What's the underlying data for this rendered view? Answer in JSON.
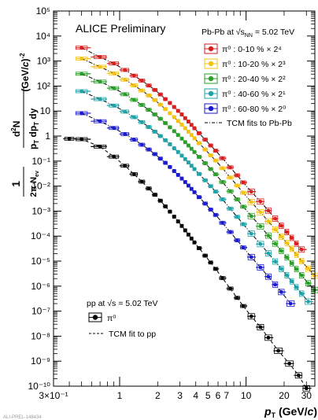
{
  "chart_data": {
    "type": "scatter",
    "annotation": "ALICE Preliminary",
    "footer": "ALI-PREL-148434",
    "xlabel": "p_T (GeV/c)",
    "ylabel": "(1 / 2π N_ev) d²N / (p_T dp_T dy) (GeV/c)^-2",
    "xlim": [
      0.3,
      35
    ],
    "ylim": [
      1e-10,
      100000.0
    ],
    "x_scale": "log",
    "y_scale": "log",
    "x_tick_labels": [
      {
        "v": 0.3,
        "t": "3×10⁻¹"
      },
      {
        "v": 1,
        "t": "1"
      },
      {
        "v": 2,
        "t": "2"
      },
      {
        "v": 3,
        "t": "3"
      },
      {
        "v": 4,
        "t": "4"
      },
      {
        "v": 5,
        "t": "5"
      },
      {
        "v": 6,
        "t": "6"
      },
      {
        "v": 7,
        "t": "7"
      },
      {
        "v": 10,
        "t": "10"
      },
      {
        "v": 20,
        "t": "20"
      },
      {
        "v": 30,
        "t": "30"
      }
    ],
    "y_tick_labels": [
      {
        "v": 100000.0,
        "t": "10⁵"
      },
      {
        "v": 10000.0,
        "t": "10⁴"
      },
      {
        "v": 1000.0,
        "t": "10³"
      },
      {
        "v": 100.0,
        "t": "10²"
      },
      {
        "v": 10,
        "t": "10"
      },
      {
        "v": 1,
        "t": "1"
      },
      {
        "v": 0.1,
        "t": "10⁻¹"
      },
      {
        "v": 0.01,
        "t": "10⁻²"
      },
      {
        "v": 0.001,
        "t": "10⁻³"
      },
      {
        "v": 0.0001,
        "t": "10⁻⁴"
      },
      {
        "v": 1e-05,
        "t": "10⁻⁵"
      },
      {
        "v": 1e-06,
        "t": "10⁻⁶"
      },
      {
        "v": 1e-07,
        "t": "10⁻⁷"
      },
      {
        "v": 1e-08,
        "t": "10⁻⁸"
      },
      {
        "v": 1e-09,
        "t": "10⁻⁹"
      },
      {
        "v": 1e-10,
        "t": "10⁻¹⁰"
      }
    ],
    "legend_pbpb": {
      "header": "Pb-Pb at √s_NN = 5.02 TeV",
      "fit_label": "TCM fits to Pb-Pb",
      "placement": "top-right"
    },
    "legend_pp": {
      "header": "pp at √s = 5.02 TeV",
      "entry_label": "π⁰",
      "fit_label": "TCM fit to pp",
      "placement": "bottom-left"
    },
    "series": [
      {
        "name": "π⁰ : 0-10 % × 2⁴",
        "color": "#d81e1e",
        "points": [
          [
            0.5,
            3400.0
          ],
          [
            0.7,
            1450.0
          ],
          [
            0.9,
            800
          ],
          [
            1.1,
            440
          ],
          [
            1.3,
            260
          ],
          [
            1.5,
            165
          ],
          [
            1.7,
            105
          ],
          [
            1.9,
            70
          ],
          [
            2.1,
            46
          ],
          [
            2.3,
            30
          ],
          [
            2.5,
            21
          ],
          [
            2.7,
            14.5
          ],
          [
            2.9,
            10.2
          ],
          [
            3.1,
            7.3
          ],
          [
            3.3,
            5.2
          ],
          [
            3.5,
            3.8
          ],
          [
            3.7,
            2.8
          ],
          [
            3.9,
            2.05
          ],
          [
            4.25,
            1.3
          ],
          [
            4.75,
            0.72
          ],
          [
            5.25,
            0.42
          ],
          [
            5.75,
            0.26
          ],
          [
            6.5,
            0.13
          ],
          [
            7.5,
            0.056
          ],
          [
            8.5,
            0.027
          ],
          [
            9.5,
            0.014
          ],
          [
            11,
            0.006
          ],
          [
            13,
            0.0024
          ],
          [
            15,
            0.00105
          ],
          [
            17,
            0.0005
          ],
          [
            19,
            0.00026
          ],
          [
            21,
            0.000145
          ],
          [
            23,
            8.5e-05
          ],
          [
            25,
            5e-05
          ],
          [
            27.5,
            2.9e-05
          ]
        ]
      },
      {
        "name": "π⁰ : 10-20 % × 2³",
        "color": "#f5c211",
        "points": [
          [
            0.5,
            1250.0
          ],
          [
            0.7,
            590
          ],
          [
            0.9,
            320
          ],
          [
            1.1,
            180
          ],
          [
            1.3,
            106
          ],
          [
            1.5,
            66
          ],
          [
            1.7,
            42
          ],
          [
            1.9,
            27.5
          ],
          [
            2.1,
            18
          ],
          [
            2.3,
            12
          ],
          [
            2.5,
            8.2
          ],
          [
            2.7,
            5.7
          ],
          [
            2.9,
            4.0
          ],
          [
            3.1,
            2.85
          ],
          [
            3.3,
            2.05
          ],
          [
            3.5,
            1.5
          ],
          [
            3.7,
            1.1
          ],
          [
            3.9,
            0.82
          ],
          [
            4.25,
            0.52
          ],
          [
            4.75,
            0.29
          ],
          [
            5.25,
            0.17
          ],
          [
            5.75,
            0.105
          ],
          [
            6.5,
            0.052
          ],
          [
            7.5,
            0.022
          ],
          [
            8.5,
            0.0105
          ],
          [
            9.5,
            0.0054
          ],
          [
            11,
            0.0023
          ],
          [
            13,
            0.0009
          ],
          [
            15,
            0.00039
          ],
          [
            17,
            0.000185
          ],
          [
            19,
            9.5e-05
          ],
          [
            21,
            5.3e-05
          ],
          [
            23,
            3.1e-05
          ],
          [
            25,
            1.8e-05
          ],
          [
            27.5,
            1e-05
          ],
          [
            31,
            5e-06
          ],
          [
            35,
            2.6e-06
          ]
        ]
      },
      {
        "name": "π⁰ : 20-40 % × 2²",
        "color": "#2aa02a",
        "points": [
          [
            0.5,
            310
          ],
          [
            0.7,
            150
          ],
          [
            0.9,
            82
          ],
          [
            1.1,
            47
          ],
          [
            1.3,
            28
          ],
          [
            1.5,
            17.5
          ],
          [
            1.7,
            11.2
          ],
          [
            1.9,
            7.3
          ],
          [
            2.1,
            4.9
          ],
          [
            2.3,
            3.3
          ],
          [
            2.5,
            2.25
          ],
          [
            2.7,
            1.57
          ],
          [
            2.9,
            1.1
          ],
          [
            3.1,
            0.79
          ],
          [
            3.3,
            0.57
          ],
          [
            3.5,
            0.42
          ],
          [
            3.7,
            0.31
          ],
          [
            3.9,
            0.23
          ],
          [
            4.25,
            0.147
          ],
          [
            4.75,
            0.082
          ],
          [
            5.25,
            0.048
          ],
          [
            5.75,
            0.0295
          ],
          [
            6.5,
            0.0145
          ],
          [
            7.5,
            0.0062
          ],
          [
            8.5,
            0.00295
          ],
          [
            9.5,
            0.0015
          ],
          [
            11,
            0.00063
          ],
          [
            13,
            0.000245
          ],
          [
            15,
            0.000105
          ],
          [
            17,
            5e-05
          ],
          [
            19,
            2.55e-05
          ],
          [
            21,
            1.4e-05
          ],
          [
            23,
            8.2e-06
          ],
          [
            25,
            4.8e-06
          ],
          [
            27.5,
            2.7e-06
          ],
          [
            31,
            1.3e-06
          ],
          [
            35,
            7e-07
          ]
        ]
      },
      {
        "name": "π⁰ : 40-60 % × 2¹",
        "color": "#1fa3a8",
        "points": [
          [
            0.5,
            62
          ],
          [
            0.7,
            30
          ],
          [
            0.9,
            16.5
          ],
          [
            1.1,
            9.5
          ],
          [
            1.3,
            5.7
          ],
          [
            1.5,
            3.6
          ],
          [
            1.7,
            2.3
          ],
          [
            1.9,
            1.5
          ],
          [
            2.1,
            1.0
          ],
          [
            2.3,
            0.68
          ],
          [
            2.5,
            0.47
          ],
          [
            2.7,
            0.325
          ],
          [
            2.9,
            0.23
          ],
          [
            3.1,
            0.165
          ],
          [
            3.3,
            0.12
          ],
          [
            3.5,
            0.088
          ],
          [
            3.7,
            0.065
          ],
          [
            3.9,
            0.048
          ],
          [
            4.25,
            0.0305
          ],
          [
            4.75,
            0.017
          ],
          [
            5.25,
            0.0099
          ],
          [
            5.75,
            0.006
          ],
          [
            6.5,
            0.00295
          ],
          [
            7.5,
            0.00125
          ],
          [
            8.5,
            0.00059
          ],
          [
            9.5,
            0.0003
          ],
          [
            11,
            0.000125
          ],
          [
            13,
            4.8e-05
          ],
          [
            15,
            2.05e-05
          ],
          [
            17,
            9.6e-06
          ],
          [
            19,
            4.9e-06
          ],
          [
            21,
            2.7e-06
          ],
          [
            23,
            1.55e-06
          ],
          [
            25,
            9e-07
          ],
          [
            27.5,
            5e-07
          ],
          [
            31,
            2.4e-07
          ]
        ]
      },
      {
        "name": "π⁰ : 60-80 % × 2⁰",
        "color": "#1a1ad0",
        "points": [
          [
            0.5,
            8.2
          ],
          [
            0.7,
            3.9
          ],
          [
            0.9,
            2.1
          ],
          [
            1.1,
            1.2
          ],
          [
            1.3,
            0.72
          ],
          [
            1.5,
            0.45
          ],
          [
            1.7,
            0.29
          ],
          [
            1.9,
            0.19
          ],
          [
            2.1,
            0.125
          ],
          [
            2.3,
            0.085
          ],
          [
            2.5,
            0.058
          ],
          [
            2.7,
            0.04
          ],
          [
            2.9,
            0.028
          ],
          [
            3.1,
            0.02
          ],
          [
            3.3,
            0.0145
          ],
          [
            3.5,
            0.0105
          ],
          [
            3.7,
            0.0077
          ],
          [
            3.9,
            0.0057
          ],
          [
            4.25,
            0.0036
          ],
          [
            4.75,
            0.002
          ],
          [
            5.25,
            0.00115
          ],
          [
            5.75,
            0.0007
          ],
          [
            6.5,
            0.00034
          ],
          [
            7.5,
            0.000145
          ],
          [
            8.5,
            6.8e-05
          ],
          [
            9.5,
            3.5e-05
          ],
          [
            11,
            1.45e-05
          ],
          [
            13,
            5.6e-06
          ],
          [
            15,
            2.4e-06
          ],
          [
            17,
            1.15e-06
          ],
          [
            19,
            5.8e-07
          ],
          [
            22.5,
            2e-07
          ]
        ]
      },
      {
        "name": "pp π⁰",
        "color": "#000000",
        "points": [
          [
            0.4,
            0.78
          ],
          [
            0.5,
            0.75
          ],
          [
            0.7,
            0.38
          ],
          [
            0.9,
            0.15
          ],
          [
            1.1,
            0.065
          ],
          [
            1.3,
            0.03
          ],
          [
            1.5,
            0.015
          ],
          [
            1.7,
            0.008
          ],
          [
            1.9,
            0.0045
          ],
          [
            2.1,
            0.0026
          ],
          [
            2.3,
            0.00155
          ],
          [
            2.5,
            0.00095
          ],
          [
            2.7,
            0.0006
          ],
          [
            2.9,
            0.000385
          ],
          [
            3.1,
            0.000255
          ],
          [
            3.3,
            0.00017
          ],
          [
            3.5,
            0.000115
          ],
          [
            3.7,
            8e-05
          ],
          [
            3.9,
            5.6e-05
          ],
          [
            4.25,
            3.3e-05
          ],
          [
            4.75,
            1.65e-05
          ],
          [
            5.25,
            8.8e-06
          ],
          [
            5.75,
            4.9e-06
          ],
          [
            6.5,
            2.1e-06
          ],
          [
            7.5,
            8e-07
          ],
          [
            8.5,
            3.4e-07
          ],
          [
            9.5,
            1.6e-07
          ],
          [
            11,
            6.2e-08
          ],
          [
            13,
            2.3e-08
          ],
          [
            15,
            8.7e-09
          ],
          [
            18,
            2.6e-09
          ],
          [
            22,
            8e-10
          ],
          [
            26,
            2.7e-10
          ],
          [
            30,
            8.2e-11
          ]
        ]
      }
    ]
  }
}
